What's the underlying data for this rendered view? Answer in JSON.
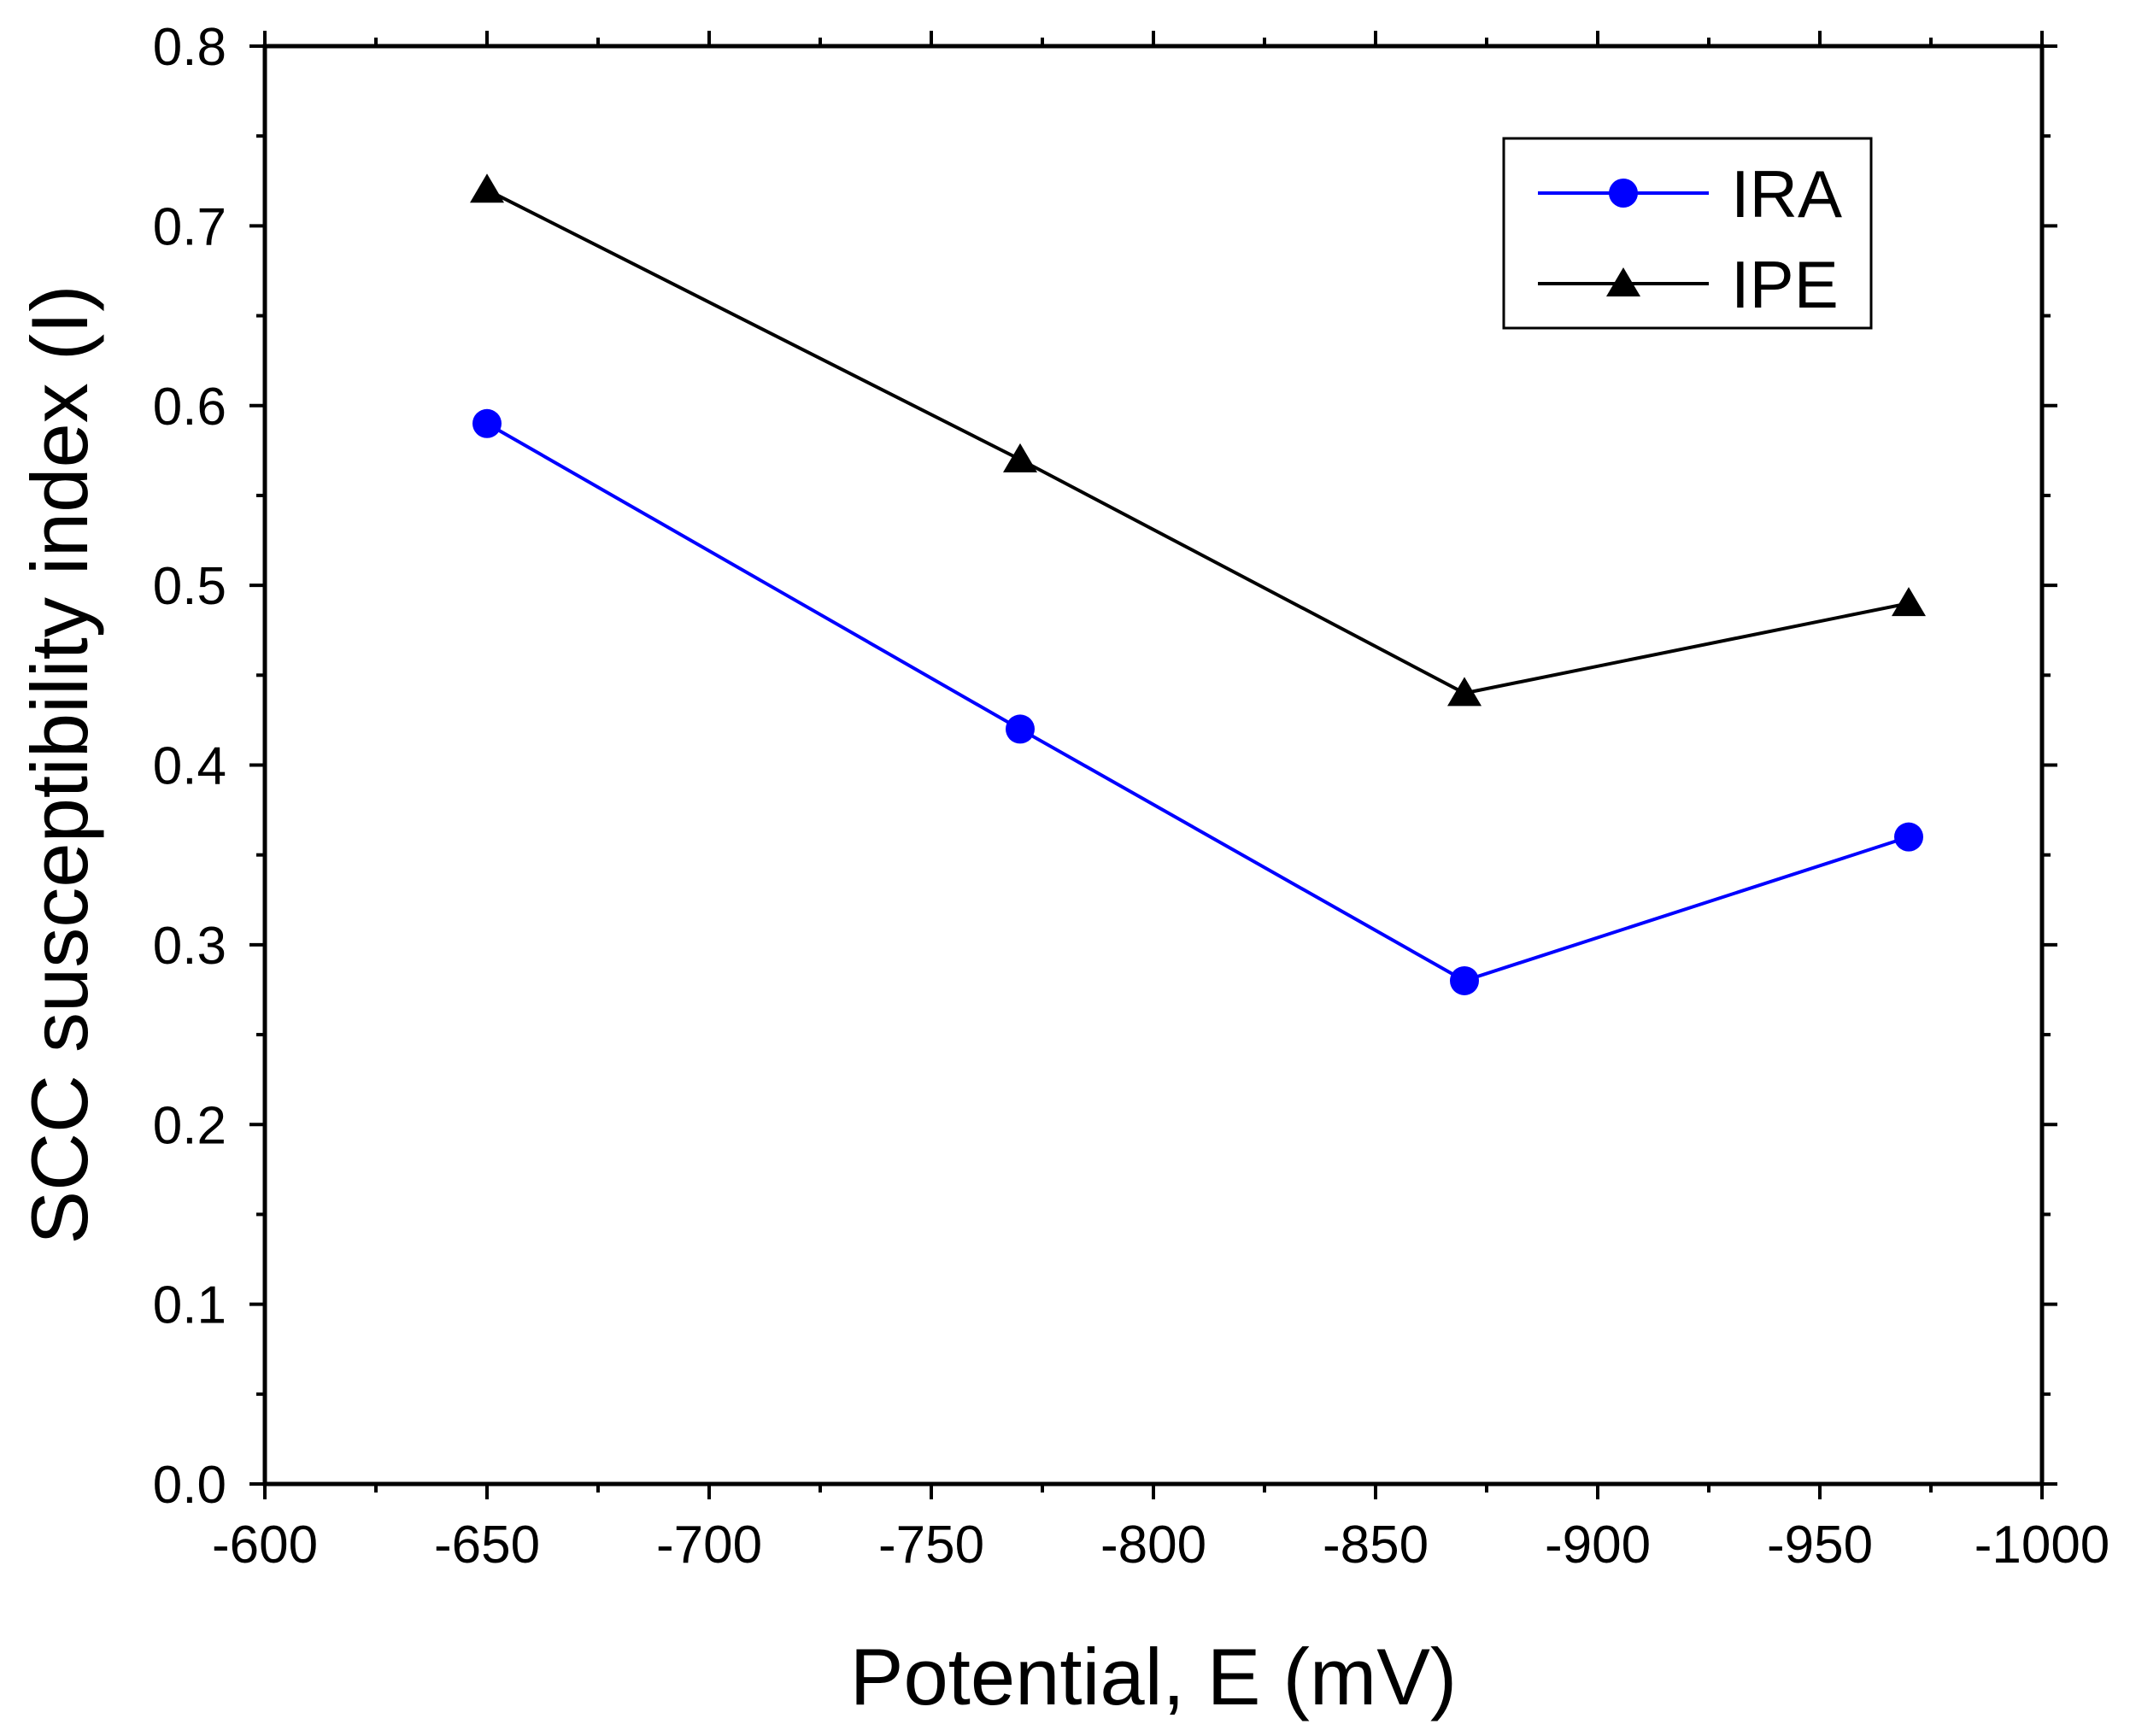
{
  "chart_data": {
    "type": "line",
    "title": "",
    "xlabel": "Potential, E (mV)",
    "ylabel": "SCC susceptibility index (I)",
    "xlim": [
      -600,
      -1000
    ],
    "ylim": [
      0.0,
      0.8
    ],
    "x_reversed": true,
    "grid": false,
    "legend_position": "top-right",
    "xticks": [
      "-600",
      "-650",
      "-700",
      "-750",
      "-800",
      "-850",
      "-900",
      "-950",
      "-1000"
    ],
    "xtick_values": [
      -600,
      -650,
      -700,
      -750,
      -800,
      -850,
      -900,
      -950,
      -1000
    ],
    "yticks": [
      "0.0",
      "0.1",
      "0.2",
      "0.3",
      "0.4",
      "0.5",
      "0.6",
      "0.7",
      "0.8"
    ],
    "ytick_values": [
      0.0,
      0.1,
      0.2,
      0.3,
      0.4,
      0.5,
      0.6,
      0.7,
      0.8
    ],
    "series": [
      {
        "name": "IRA",
        "color": "#0000ff",
        "marker": "circle",
        "x": [
          -650,
          -770,
          -870,
          -970
        ],
        "values": [
          0.59,
          0.42,
          0.28,
          0.36
        ]
      },
      {
        "name": "IPE",
        "color": "#000000",
        "marker": "triangle",
        "x": [
          -650,
          -770,
          -870,
          -970
        ],
        "values": [
          0.72,
          0.57,
          0.44,
          0.49
        ]
      }
    ]
  }
}
